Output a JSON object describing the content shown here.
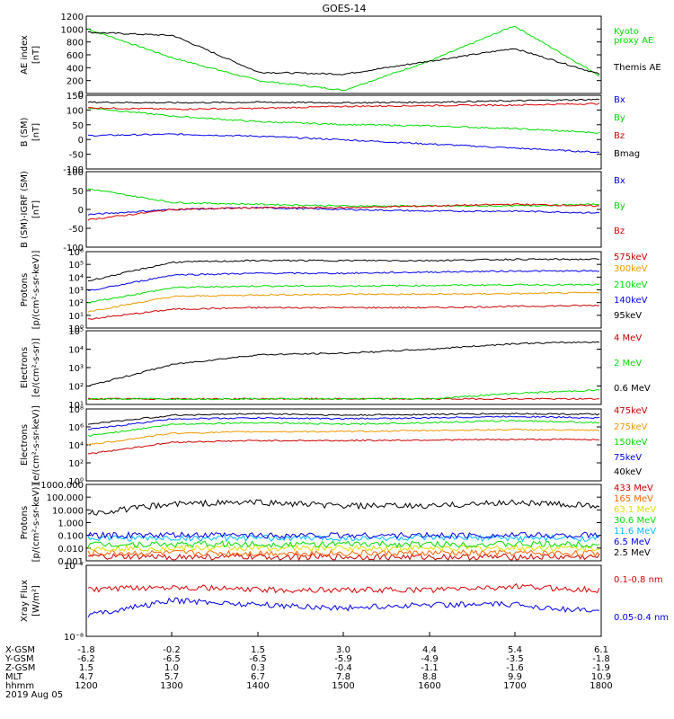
{
  "title": "GOES-14",
  "panels": [
    {
      "id": "ae",
      "ylabel": [
        "AE index",
        "[nT]"
      ],
      "yticks": [
        "0",
        "200",
        "400",
        "600",
        "800",
        "1000",
        "1200"
      ],
      "legend": [
        {
          "text": "Kyoto",
          "color": "#00dd00"
        },
        {
          "text": "proxy AE",
          "color": "#00dd00"
        },
        {
          "text": "Themis AE",
          "color": "#000000"
        }
      ]
    },
    {
      "id": "bsm",
      "ylabel": [
        "B (SM)",
        "[nT]"
      ],
      "yticks": [
        "-100",
        "-50",
        "0",
        "50",
        "100",
        "150"
      ],
      "legend": [
        {
          "text": "Bx",
          "color": "#0000ee"
        },
        {
          "text": "By",
          "color": "#00dd00"
        },
        {
          "text": "Bz",
          "color": "#dd0000"
        },
        {
          "text": "Bmag",
          "color": "#000000"
        }
      ]
    },
    {
      "id": "bigrf",
      "ylabel": [
        "B (SM)-IGRF (SM)",
        "[nT]"
      ],
      "yticks": [
        "-100",
        "-50",
        "0",
        "50",
        "100"
      ],
      "legend": [
        {
          "text": "Bx",
          "color": "#0000ee"
        },
        {
          "text": "By",
          "color": "#00dd00"
        },
        {
          "text": "Bz",
          "color": "#dd0000"
        }
      ]
    },
    {
      "id": "protons-kev",
      "ylabel": [
        "Protons",
        "[p/(cm²-s-sr-keV)]"
      ],
      "yticks": [
        "10⁰",
        "10¹",
        "10²",
        "10³",
        "10⁴",
        "10⁵",
        "10⁶"
      ],
      "legend": [
        {
          "text": "575keV",
          "color": "#cc0000"
        },
        {
          "text": "300keV",
          "color": "#ee9900"
        },
        {
          "text": "210keV",
          "color": "#00dd00"
        },
        {
          "text": "140keV",
          "color": "#0000ee"
        },
        {
          "text": "95keV",
          "color": "#000000"
        }
      ]
    },
    {
      "id": "electrons-mev",
      "ylabel": [
        "Electrons",
        "[e/(cm²-s-sr)]"
      ],
      "yticks": [
        "10¹",
        "10²",
        "10³",
        "10⁴",
        "10⁵"
      ],
      "legend": [
        {
          "text": "4 MeV",
          "color": "#cc0000"
        },
        {
          "text": "2 MeV",
          "color": "#00dd00"
        },
        {
          "text": "0.6 MeV",
          "color": "#000000"
        }
      ]
    },
    {
      "id": "electrons-kev",
      "ylabel": [
        "Electrons",
        "[e/(cm²-s-sr-keV)]"
      ],
      "yticks": [
        "10⁰",
        "10²",
        "10⁴",
        "10⁶",
        "10⁸"
      ],
      "legend": [
        {
          "text": "475keV",
          "color": "#cc0000"
        },
        {
          "text": "275keV",
          "color": "#ee9900"
        },
        {
          "text": "150keV",
          "color": "#00dd00"
        },
        {
          "text": "75keV",
          "color": "#0000ee"
        },
        {
          "text": "40keV",
          "color": "#000000"
        }
      ]
    },
    {
      "id": "protons-mev",
      "ylabel": [
        "Protons",
        "[p/(cm²-s-sr-keV)]"
      ],
      "yticks": [
        "0.001",
        "0.010",
        "0.100",
        "1.000",
        "10.000",
        "100.000",
        "1000.000"
      ],
      "legend": [
        {
          "text": "433 MeV",
          "color": "#cc0000"
        },
        {
          "text": "165 MeV",
          "color": "#ff6600"
        },
        {
          "text": "63.1 MeV",
          "color": "#dddd00"
        },
        {
          "text": "30.6 MeV",
          "color": "#00dd00"
        },
        {
          "text": "11.6 MeV",
          "color": "#00bbff"
        },
        {
          "text": "6.5 MeV",
          "color": "#0000ee"
        },
        {
          "text": "2.5 MeV",
          "color": "#000000"
        }
      ]
    },
    {
      "id": "xray",
      "ylabel": [
        "Xray Flux",
        "[W/m²]"
      ],
      "yticks": [
        "10⁻⁸",
        "10⁻⁷"
      ],
      "legend": [
        {
          "text": "0.1-0.8 nm",
          "color": "#dd0000"
        },
        {
          "text": "0.05-0.4 nm",
          "color": "#0000ee"
        }
      ]
    }
  ],
  "footer": {
    "rows": [
      {
        "label": "X-GSM",
        "values": [
          "-1.8",
          "-0.2",
          "1.5",
          "3.0",
          "4.4",
          "5.4",
          "6.1"
        ]
      },
      {
        "label": "Y-GSM",
        "values": [
          "-6.2",
          "-6.5",
          "-6.5",
          "-5.9",
          "-4.9",
          "-3.5",
          "-1.8"
        ]
      },
      {
        "label": "Z-GSM",
        "values": [
          "1.5",
          "1.0",
          "0.3",
          "-0.4",
          "-1.1",
          "-1.6",
          "-1.9"
        ]
      },
      {
        "label": "MLT",
        "values": [
          "4.7",
          "5.7",
          "6.7",
          "7.8",
          "8.8",
          "9.9",
          "10.9"
        ]
      },
      {
        "label": "hhmm",
        "values": [
          "1200",
          "1300",
          "1400",
          "1500",
          "1600",
          "1700",
          "1800"
        ]
      }
    ],
    "date": "2019 Aug 05"
  },
  "chart_data": [
    {
      "type": "line",
      "title": "GOES-14",
      "ylabel": "AE index [nT]",
      "ylim": [
        0,
        1200
      ],
      "x": [
        "1200",
        "1300",
        "1400",
        "1500",
        "1600",
        "1700",
        "1800"
      ],
      "series": [
        {
          "name": "Kyoto proxy AE",
          "color": "#00dd00",
          "values": [
            1000,
            550,
            200,
            50,
            500,
            1050,
            280
          ]
        },
        {
          "name": "Themis AE",
          "color": "#000000",
          "values": [
            950,
            900,
            330,
            300,
            500,
            700,
            300
          ]
        }
      ]
    },
    {
      "type": "line",
      "ylabel": "B (SM) [nT]",
      "ylim": [
        -110,
        155
      ],
      "x": [
        "1200",
        "1300",
        "1400",
        "1500",
        "1600",
        "1700",
        "1800"
      ],
      "series": [
        {
          "name": "Bx",
          "color": "#0000ee",
          "values": [
            10,
            15,
            8,
            -5,
            -20,
            -35,
            -50
          ]
        },
        {
          "name": "By",
          "color": "#00dd00",
          "values": [
            110,
            80,
            60,
            50,
            45,
            35,
            20
          ]
        },
        {
          "name": "Bz",
          "color": "#dd0000",
          "values": [
            110,
            105,
            108,
            115,
            118,
            120,
            125
          ]
        },
        {
          "name": "Bmag",
          "color": "#000000",
          "values": [
            130,
            128,
            130,
            128,
            130,
            135,
            140
          ]
        }
      ]
    },
    {
      "type": "line",
      "ylabel": "B (SM)-IGRF (SM) [nT]",
      "ylim": [
        -110,
        110
      ],
      "x": [
        "1200",
        "1300",
        "1400",
        "1500",
        "1600",
        "1700",
        "1800"
      ],
      "series": [
        {
          "name": "Bx",
          "color": "#0000ee",
          "values": [
            -15,
            0,
            5,
            0,
            -5,
            -5,
            -10
          ]
        },
        {
          "name": "By",
          "color": "#00dd00",
          "values": [
            60,
            20,
            15,
            10,
            10,
            10,
            15
          ]
        },
        {
          "name": "Bz",
          "color": "#dd0000",
          "values": [
            -30,
            0,
            5,
            5,
            10,
            15,
            10
          ]
        }
      ]
    },
    {
      "type": "line",
      "ylabel": "Protons [p/(cm²-s-sr-keV)]",
      "yscale": "log",
      "ylim": [
        1,
        1000000
      ],
      "x": [
        "1200",
        "1300",
        "1400",
        "1500",
        "1600",
        "1700",
        "1800"
      ],
      "series": [
        {
          "name": "575keV",
          "color": "#cc0000",
          "values": [
            5,
            30,
            40,
            40,
            40,
            50,
            60
          ]
        },
        {
          "name": "300keV",
          "color": "#ee9900",
          "values": [
            20,
            300,
            400,
            450,
            450,
            500,
            600
          ]
        },
        {
          "name": "210keV",
          "color": "#00dd00",
          "values": [
            100,
            1500,
            2000,
            2000,
            2200,
            2500,
            2500
          ]
        },
        {
          "name": "140keV",
          "color": "#0000ee",
          "values": [
            800,
            15000,
            20000,
            20000,
            25000,
            30000,
            30000
          ]
        },
        {
          "name": "95keV",
          "color": "#000000",
          "values": [
            5000,
            150000,
            200000,
            200000,
            200000,
            250000,
            250000
          ]
        }
      ]
    },
    {
      "type": "line",
      "ylabel": "Electrons [e/(cm²-s-sr)]",
      "yscale": "log",
      "ylim": [
        10,
        100000
      ],
      "x": [
        "1200",
        "1300",
        "1400",
        "1500",
        "1600",
        "1700",
        "1800"
      ],
      "series": [
        {
          "name": "4 MeV",
          "color": "#cc0000",
          "values": [
            20,
            20,
            20,
            20,
            20,
            20,
            20
          ]
        },
        {
          "name": "2 MeV",
          "color": "#00dd00",
          "values": [
            20,
            20,
            20,
            20,
            20,
            40,
            60
          ]
        },
        {
          "name": "0.6 MeV",
          "color": "#000000",
          "values": [
            100,
            1500,
            5000,
            6000,
            10000,
            20000,
            25000
          ]
        }
      ]
    },
    {
      "type": "line",
      "ylabel": "Electrons [e/(cm²-s-sr-keV)]",
      "yscale": "log",
      "ylim": [
        1,
        100000000
      ],
      "x": [
        "1200",
        "1300",
        "1400",
        "1500",
        "1600",
        "1700",
        "1800"
      ],
      "series": [
        {
          "name": "475keV",
          "color": "#cc0000",
          "values": [
            1000,
            20000,
            30000,
            30000,
            35000,
            40000,
            40000
          ]
        },
        {
          "name": "275keV",
          "color": "#ee9900",
          "values": [
            10000,
            200000,
            300000,
            300000,
            400000,
            500000,
            400000
          ]
        },
        {
          "name": "150keV",
          "color": "#00dd00",
          "values": [
            100000,
            2000000,
            3000000,
            2000000,
            3000000,
            5000000,
            3000000
          ]
        },
        {
          "name": "75keV",
          "color": "#0000ee",
          "values": [
            500000,
            8000000,
            10000000,
            8000000,
            10000000,
            15000000,
            10000000
          ]
        },
        {
          "name": "40keV",
          "color": "#000000",
          "values": [
            2000000,
            20000000,
            30000000,
            20000000,
            25000000,
            30000000,
            25000000
          ]
        }
      ]
    },
    {
      "type": "line",
      "ylabel": "Protons [p/(cm²-s-sr-keV)]",
      "yscale": "log",
      "ylim": [
        0.001,
        1000
      ],
      "x": [
        "1200",
        "1300",
        "1400",
        "1500",
        "1600",
        "1700",
        "1800"
      ],
      "series": [
        {
          "name": "433 MeV",
          "color": "#cc0000",
          "values": [
            0.002,
            0.002,
            0.002,
            0.002,
            0.002,
            0.002,
            0.002
          ]
        },
        {
          "name": "165 MeV",
          "color": "#ff6600",
          "values": [
            0.004,
            0.004,
            0.004,
            0.004,
            0.004,
            0.004,
            0.004
          ]
        },
        {
          "name": "63.1 MeV",
          "color": "#dddd00",
          "values": [
            0.01,
            0.01,
            0.01,
            0.01,
            0.01,
            0.01,
            0.01
          ]
        },
        {
          "name": "30.6 MeV",
          "color": "#00dd00",
          "values": [
            0.02,
            0.02,
            0.02,
            0.02,
            0.02,
            0.02,
            0.02
          ]
        },
        {
          "name": "11.6 MeV",
          "color": "#00bbff",
          "values": [
            0.06,
            0.06,
            0.06,
            0.06,
            0.06,
            0.06,
            0.06
          ]
        },
        {
          "name": "6.5 MeV",
          "color": "#0000ee",
          "values": [
            0.1,
            0.1,
            0.1,
            0.1,
            0.1,
            0.1,
            0.1
          ]
        },
        {
          "name": "2.5 MeV",
          "color": "#000000",
          "values": [
            5,
            30,
            40,
            20,
            20,
            40,
            20
          ]
        }
      ]
    },
    {
      "type": "line",
      "ylabel": "Xray Flux [W/m²]",
      "yscale": "log",
      "ylim": [
        1e-08,
        1e-07
      ],
      "x": [
        "1200",
        "1300",
        "1400",
        "1500",
        "1600",
        "1700",
        "1800"
      ],
      "series": [
        {
          "name": "0.1-0.8 nm",
          "color": "#dd0000",
          "values": [
            4.5e-08,
            5e-08,
            4.5e-08,
            4.5e-08,
            4.5e-08,
            5e-08,
            4.5e-08
          ]
        },
        {
          "name": "0.05-0.4 nm",
          "color": "#0000ee",
          "values": [
            2e-08,
            3.2e-08,
            2.8e-08,
            2.5e-08,
            2.8e-08,
            2.8e-08,
            2.2e-08
          ]
        }
      ]
    }
  ]
}
